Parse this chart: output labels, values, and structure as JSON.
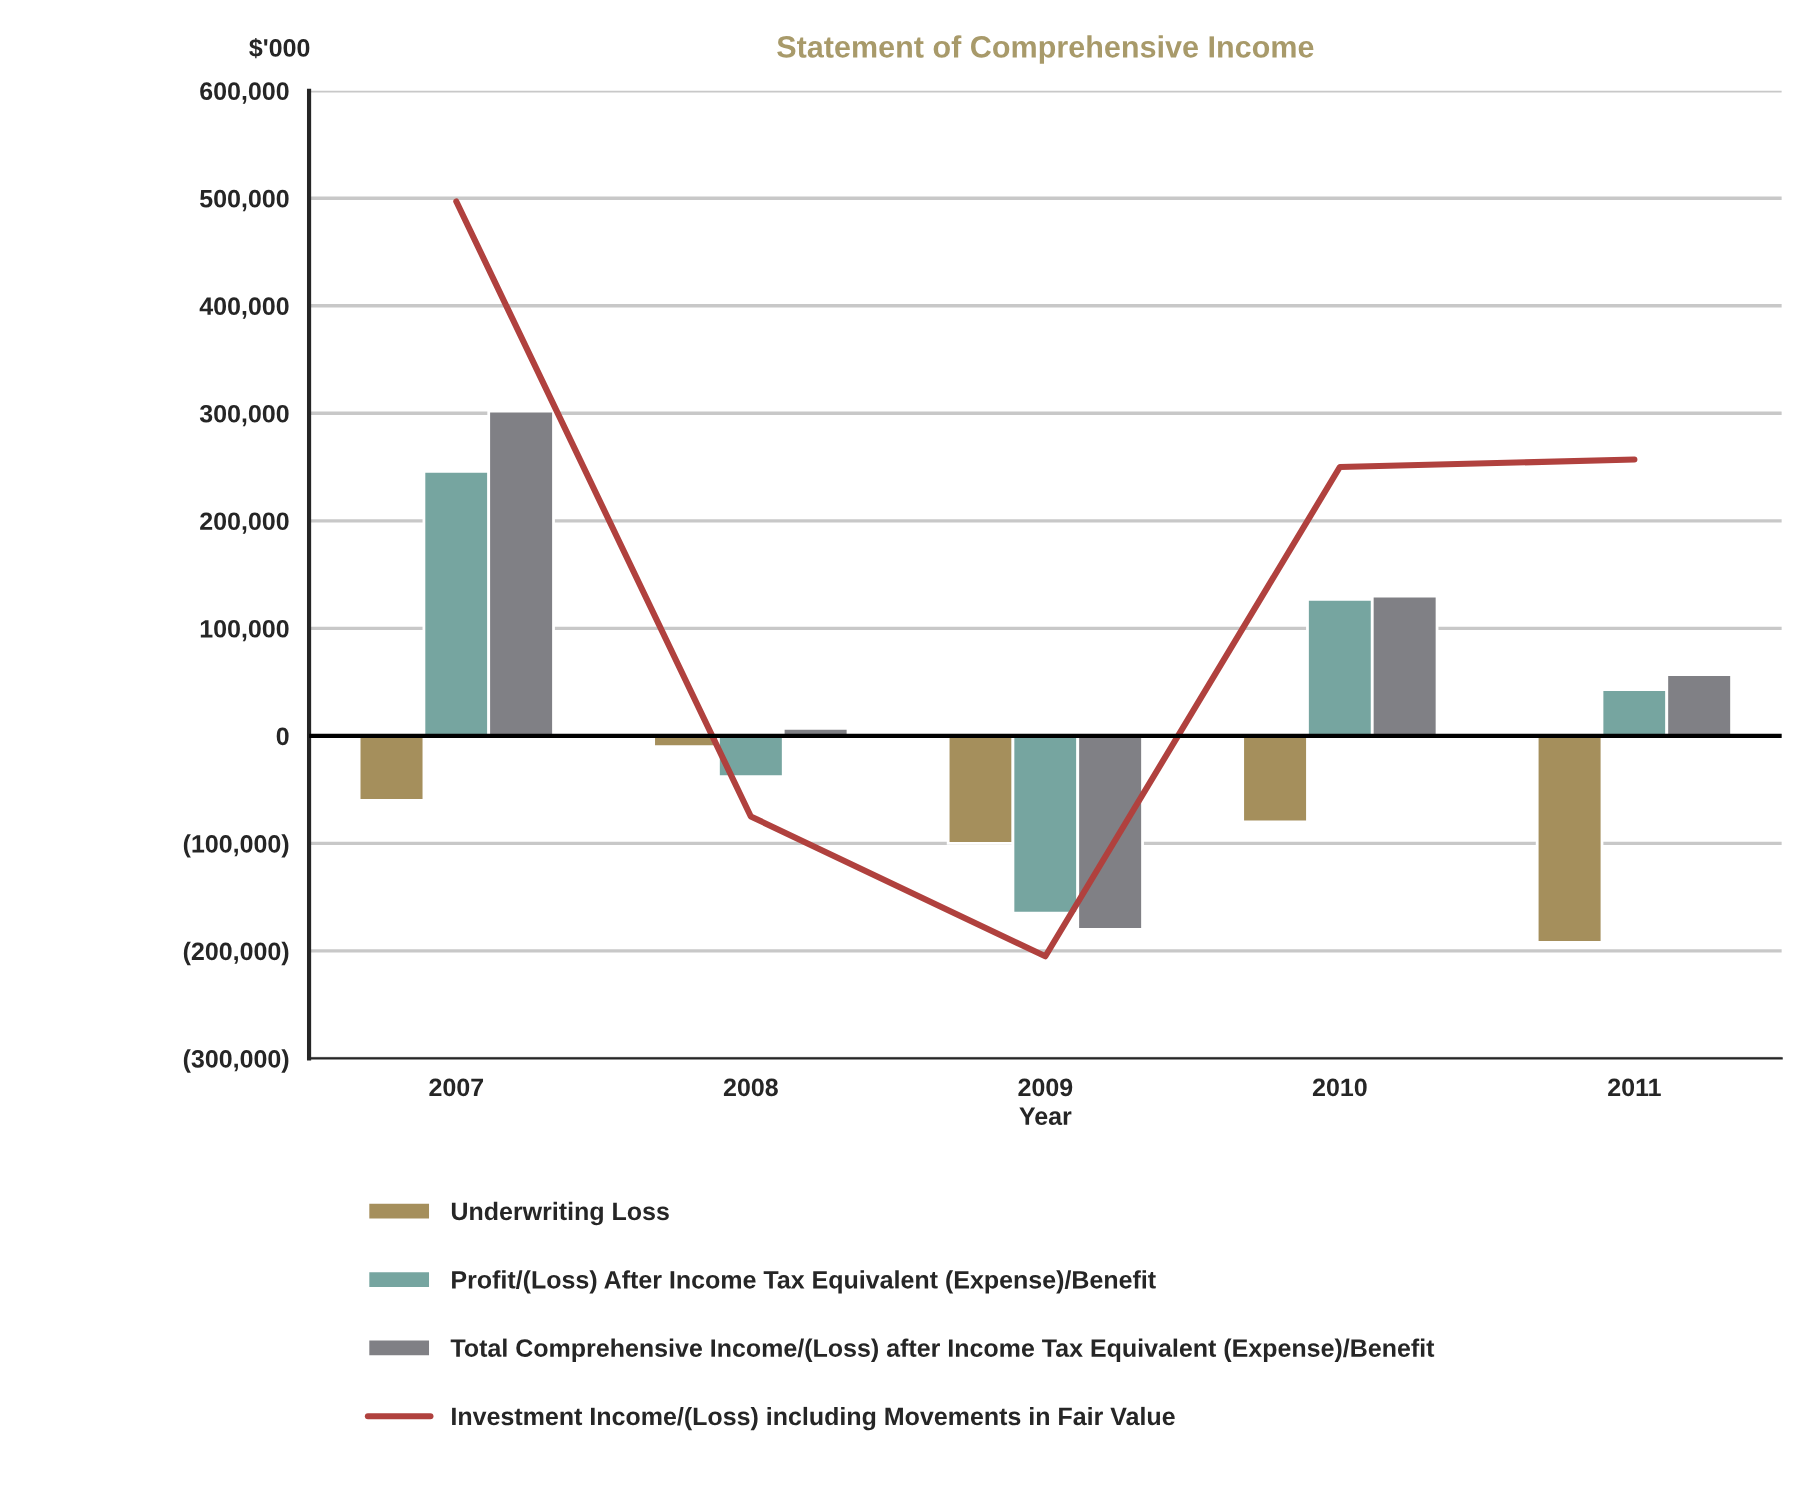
{
  "chart_data": {
    "type": "bar",
    "title": "Statement of Comprehensive Income",
    "xlabel": "Year",
    "ylabel": "$'000",
    "categories": [
      "2007",
      "2008",
      "2009",
      "2010",
      "2011"
    ],
    "series": [
      {
        "name": "Underwriting Loss",
        "color": "#a58f5c",
        "values": [
          -60000,
          -10000,
          -100000,
          -80000,
          -192000
        ]
      },
      {
        "name": "Profit/(Loss) After Income Tax Equivalent (Expense)/Benefit",
        "color": "#76a5a0",
        "values": [
          246000,
          -38000,
          -165000,
          127000,
          43000
        ]
      },
      {
        "name": "Total Comprehensive Income/(Loss) after Income Tax Equivalent (Expense)/Benefit",
        "color": "#808085",
        "values": [
          302000,
          7000,
          -180000,
          130000,
          57000
        ]
      },
      {
        "name": "Investment Income/(Loss) including Movements in Fair Value",
        "color": "#b0413e",
        "type": "line",
        "values": [
          497000,
          -75000,
          -205000,
          250000,
          257000
        ]
      }
    ],
    "ylim": [
      -300000,
      600000
    ],
    "yticks": [
      {
        "value": -300000,
        "label": "(300,000)"
      },
      {
        "value": -200000,
        "label": "(200,000)"
      },
      {
        "value": -100000,
        "label": "(100,000)"
      },
      0,
      {
        "value": 100000,
        "label": "100,000"
      },
      {
        "value": 200000,
        "label": "200,000"
      },
      {
        "value": 300000,
        "label": "300,000"
      },
      {
        "value": 400000,
        "label": "400,000"
      },
      {
        "value": 500000,
        "label": "500,000"
      },
      {
        "value": 600000,
        "label": "600,000"
      }
    ],
    "grid": "y",
    "legend": "bottom",
    "marker": "none",
    "line_style": "solid"
  }
}
